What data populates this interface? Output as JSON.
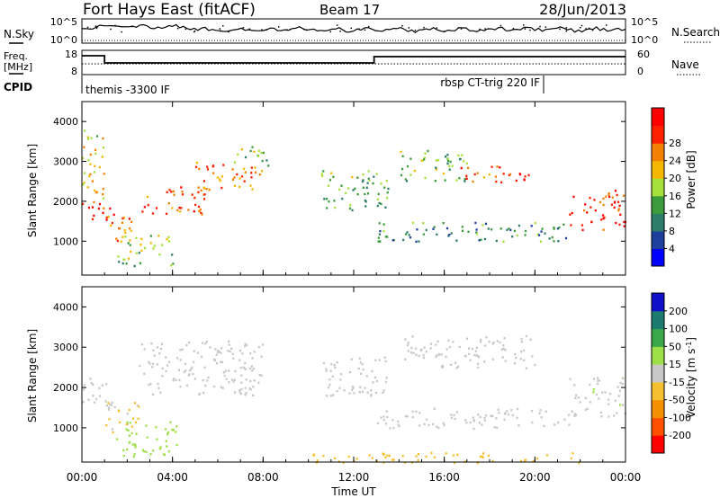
{
  "header": {
    "station": "Fort Hays East (fitACF)",
    "beam": "Beam 17",
    "date": "28/Jun/2013"
  },
  "nsky_panel": {
    "left_label": "N.Sky",
    "left_ticks": [
      "10^5",
      "10^0"
    ],
    "right_label": "N.Search",
    "right_ticks": [
      "10^5",
      "10^0"
    ]
  },
  "freq_panel": {
    "left_label_1": "Freq.",
    "left_label_2": "[MHz]",
    "left_ticks": [
      "18",
      "8"
    ],
    "right_label": "Nave",
    "right_ticks": [
      "60",
      "0"
    ]
  },
  "cpid_panel": {
    "label": "CPID",
    "programs": [
      {
        "name": "themis -3300 IF",
        "start_hour": 0
      },
      {
        "name": "rbsp CT-trig 220 IF",
        "start_hour": 20.5
      }
    ]
  },
  "x_axis": {
    "title": "Time UT",
    "ticks": [
      "00:00",
      "04:00",
      "08:00",
      "12:00",
      "16:00",
      "20:00",
      "00:00"
    ]
  },
  "colors": {
    "power_scale": [
      "#0000ff",
      "#1e3f9e",
      "#2e7d6a",
      "#3c9c3c",
      "#a6e03a",
      "#f5b800",
      "#f57f00",
      "#ff2000",
      "#ff0000"
    ],
    "velocity_scale": [
      "#1010c8",
      "#1c7a6e",
      "#3aa84a",
      "#9ee048",
      "#c8c8c8",
      "#f5c030",
      "#f59000",
      "#ff5000",
      "#ff0000"
    ]
  },
  "chart_data": [
    {
      "type": "heatmap",
      "name": "power",
      "ylabel": "Slant Range [km]",
      "y_ticks": [
        1000,
        2000,
        3000,
        4000
      ],
      "ylim": [
        150,
        4500
      ],
      "xlim": [
        0,
        24
      ],
      "colorbar": {
        "label": "Power [dB]",
        "ticks": [
          4,
          8,
          12,
          16,
          20,
          24,
          28
        ],
        "range": [
          0,
          30
        ]
      },
      "echo_regions": [
        {
          "t": [
            0.0,
            1.3
          ],
          "r": [
            1500,
            2000
          ],
          "value": 27
        },
        {
          "t": [
            0.0,
            1.0
          ],
          "r": [
            2000,
            3800
          ],
          "value": 18
        },
        {
          "t": [
            1.0,
            2.2
          ],
          "r": [
            900,
            1700
          ],
          "value": 22
        },
        {
          "t": [
            1.5,
            4.0
          ],
          "r": [
            400,
            1200
          ],
          "value": 14
        },
        {
          "t": [
            2.5,
            5.5
          ],
          "r": [
            1700,
            2400
          ],
          "value": 24
        },
        {
          "t": [
            5.0,
            8.0
          ],
          "r": [
            2300,
            3000
          ],
          "value": 22
        },
        {
          "t": [
            6.5,
            8.2
          ],
          "r": [
            2900,
            3400
          ],
          "value": 14
        },
        {
          "t": [
            10.5,
            13.5
          ],
          "r": [
            1800,
            2800
          ],
          "value": 12
        },
        {
          "t": [
            13.0,
            21.5
          ],
          "r": [
            1000,
            1500
          ],
          "value": 10
        },
        {
          "t": [
            14.0,
            17.0
          ],
          "r": [
            2500,
            3300
          ],
          "value": 13
        },
        {
          "t": [
            16.5,
            20.0
          ],
          "r": [
            2500,
            2900
          ],
          "value": 24
        },
        {
          "t": [
            21.5,
            24.0
          ],
          "r": [
            1300,
            2300
          ],
          "value": 26
        }
      ]
    },
    {
      "type": "heatmap",
      "name": "velocity",
      "ylabel": "Slant Range [km]",
      "y_ticks": [
        1000,
        2000,
        3000,
        4000
      ],
      "ylim": [
        150,
        4500
      ],
      "xlim": [
        0,
        24
      ],
      "colorbar": {
        "label": "Velocity [m s^-1]",
        "ticks": [
          200,
          100,
          50,
          15,
          -15,
          -50,
          -100,
          -200
        ],
        "range": [
          -250,
          250
        ]
      },
      "echo_regions": [
        {
          "t": [
            0.0,
            1.3
          ],
          "r": [
            1500,
            2300
          ],
          "value": 0
        },
        {
          "t": [
            1.0,
            2.5
          ],
          "r": [
            900,
            1700
          ],
          "value": -40
        },
        {
          "t": [
            1.5,
            4.2
          ],
          "r": [
            300,
            1200
          ],
          "value": 60
        },
        {
          "t": [
            2.5,
            8.0
          ],
          "r": [
            1800,
            3200
          ],
          "value": 0
        },
        {
          "t": [
            10.5,
            13.5
          ],
          "r": [
            1800,
            2800
          ],
          "value": 0
        },
        {
          "t": [
            13.0,
            21.5
          ],
          "r": [
            1000,
            1500
          ],
          "value": 0
        },
        {
          "t": [
            14.0,
            20.0
          ],
          "r": [
            2500,
            3300
          ],
          "value": 0
        },
        {
          "t": [
            21.5,
            24.0
          ],
          "r": [
            1300,
            2300
          ],
          "value": 10
        },
        {
          "t": [
            10.0,
            22.0
          ],
          "r": [
            150,
            400
          ],
          "value": -60
        }
      ]
    }
  ]
}
